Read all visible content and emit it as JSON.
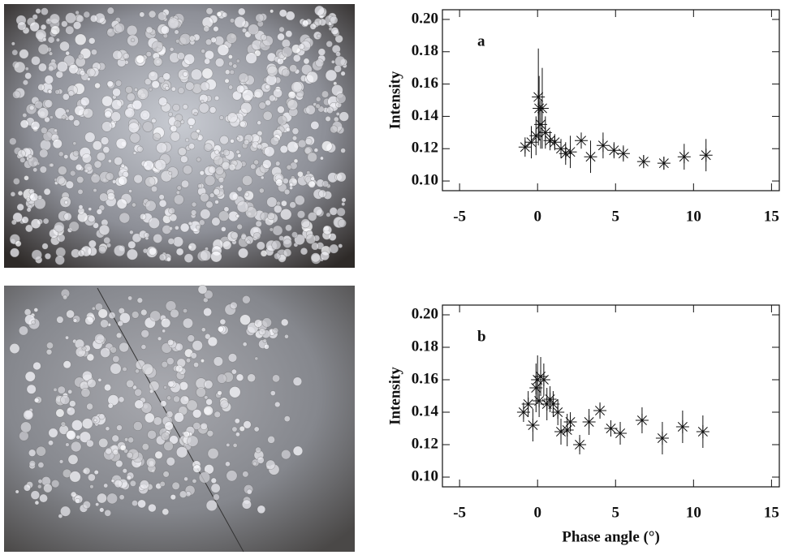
{
  "chart_data": [
    {
      "type": "scatter",
      "panel": "a",
      "y_label": "Intensity",
      "x": [
        -0.8,
        -0.4,
        -0.1,
        0.05,
        0.1,
        0.2,
        0.3,
        0.5,
        0.8,
        1.1,
        1.5,
        1.8,
        2.1,
        2.8,
        3.4,
        4.2,
        4.9,
        5.5,
        6.8,
        8.1,
        9.4,
        10.8
      ],
      "values": [
        0.121,
        0.124,
        0.128,
        0.152,
        0.145,
        0.135,
        0.145,
        0.13,
        0.125,
        0.124,
        0.12,
        0.117,
        0.118,
        0.125,
        0.115,
        0.122,
        0.119,
        0.117,
        0.112,
        0.111,
        0.115,
        0.116
      ],
      "errors": [
        0.006,
        0.01,
        0.012,
        0.03,
        0.02,
        0.015,
        0.025,
        0.01,
        0.006,
        0.005,
        0.006,
        0.007,
        0.01,
        0.005,
        0.01,
        0.008,
        0.005,
        0.005,
        0.004,
        0.004,
        0.008,
        0.01
      ],
      "color": "#111111",
      "xlim": [
        -6.1,
        15.5
      ],
      "xticks": [
        -5,
        0,
        5,
        10,
        15
      ],
      "ylim": [
        0.094,
        0.206
      ],
      "yticks": [
        {
          "value": 0.1,
          "label": "0.10"
        },
        0.12,
        0.14,
        0.16,
        0.18,
        {
          "value": 0.2,
          "label": "0.20"
        }
      ]
    },
    {
      "type": "scatter",
      "panel": "b",
      "y_label": "Intensity",
      "x_label": "Phase angle (°)",
      "x": [
        -0.9,
        -0.6,
        -0.3,
        -0.1,
        0.0,
        0.1,
        0.2,
        0.4,
        0.6,
        0.8,
        1.0,
        1.3,
        1.5,
        1.9,
        2.1,
        2.7,
        3.3,
        4.0,
        4.7,
        5.3,
        6.7,
        8.0,
        9.3,
        10.6
      ],
      "values": [
        0.14,
        0.145,
        0.132,
        0.155,
        0.16,
        0.147,
        0.162,
        0.16,
        0.145,
        0.148,
        0.145,
        0.14,
        0.128,
        0.129,
        0.134,
        0.12,
        0.134,
        0.141,
        0.13,
        0.127,
        0.135,
        0.124,
        0.131,
        0.128
      ],
      "errors": [
        0.006,
        0.008,
        0.01,
        0.015,
        0.015,
        0.01,
        0.012,
        0.01,
        0.01,
        0.008,
        0.008,
        0.008,
        0.008,
        0.01,
        0.006,
        0.006,
        0.008,
        0.005,
        0.005,
        0.007,
        0.008,
        0.01,
        0.01,
        0.01
      ],
      "color": "#111111",
      "xlim": [
        -6.1,
        15.5
      ],
      "xticks": [
        -5,
        0,
        5,
        10,
        15
      ],
      "ylim": [
        0.094,
        0.206
      ],
      "yticks": [
        {
          "value": 0.1,
          "label": "0.10"
        },
        0.12,
        0.14,
        0.16,
        0.18,
        {
          "value": 0.2,
          "label": "0.20"
        }
      ]
    }
  ]
}
